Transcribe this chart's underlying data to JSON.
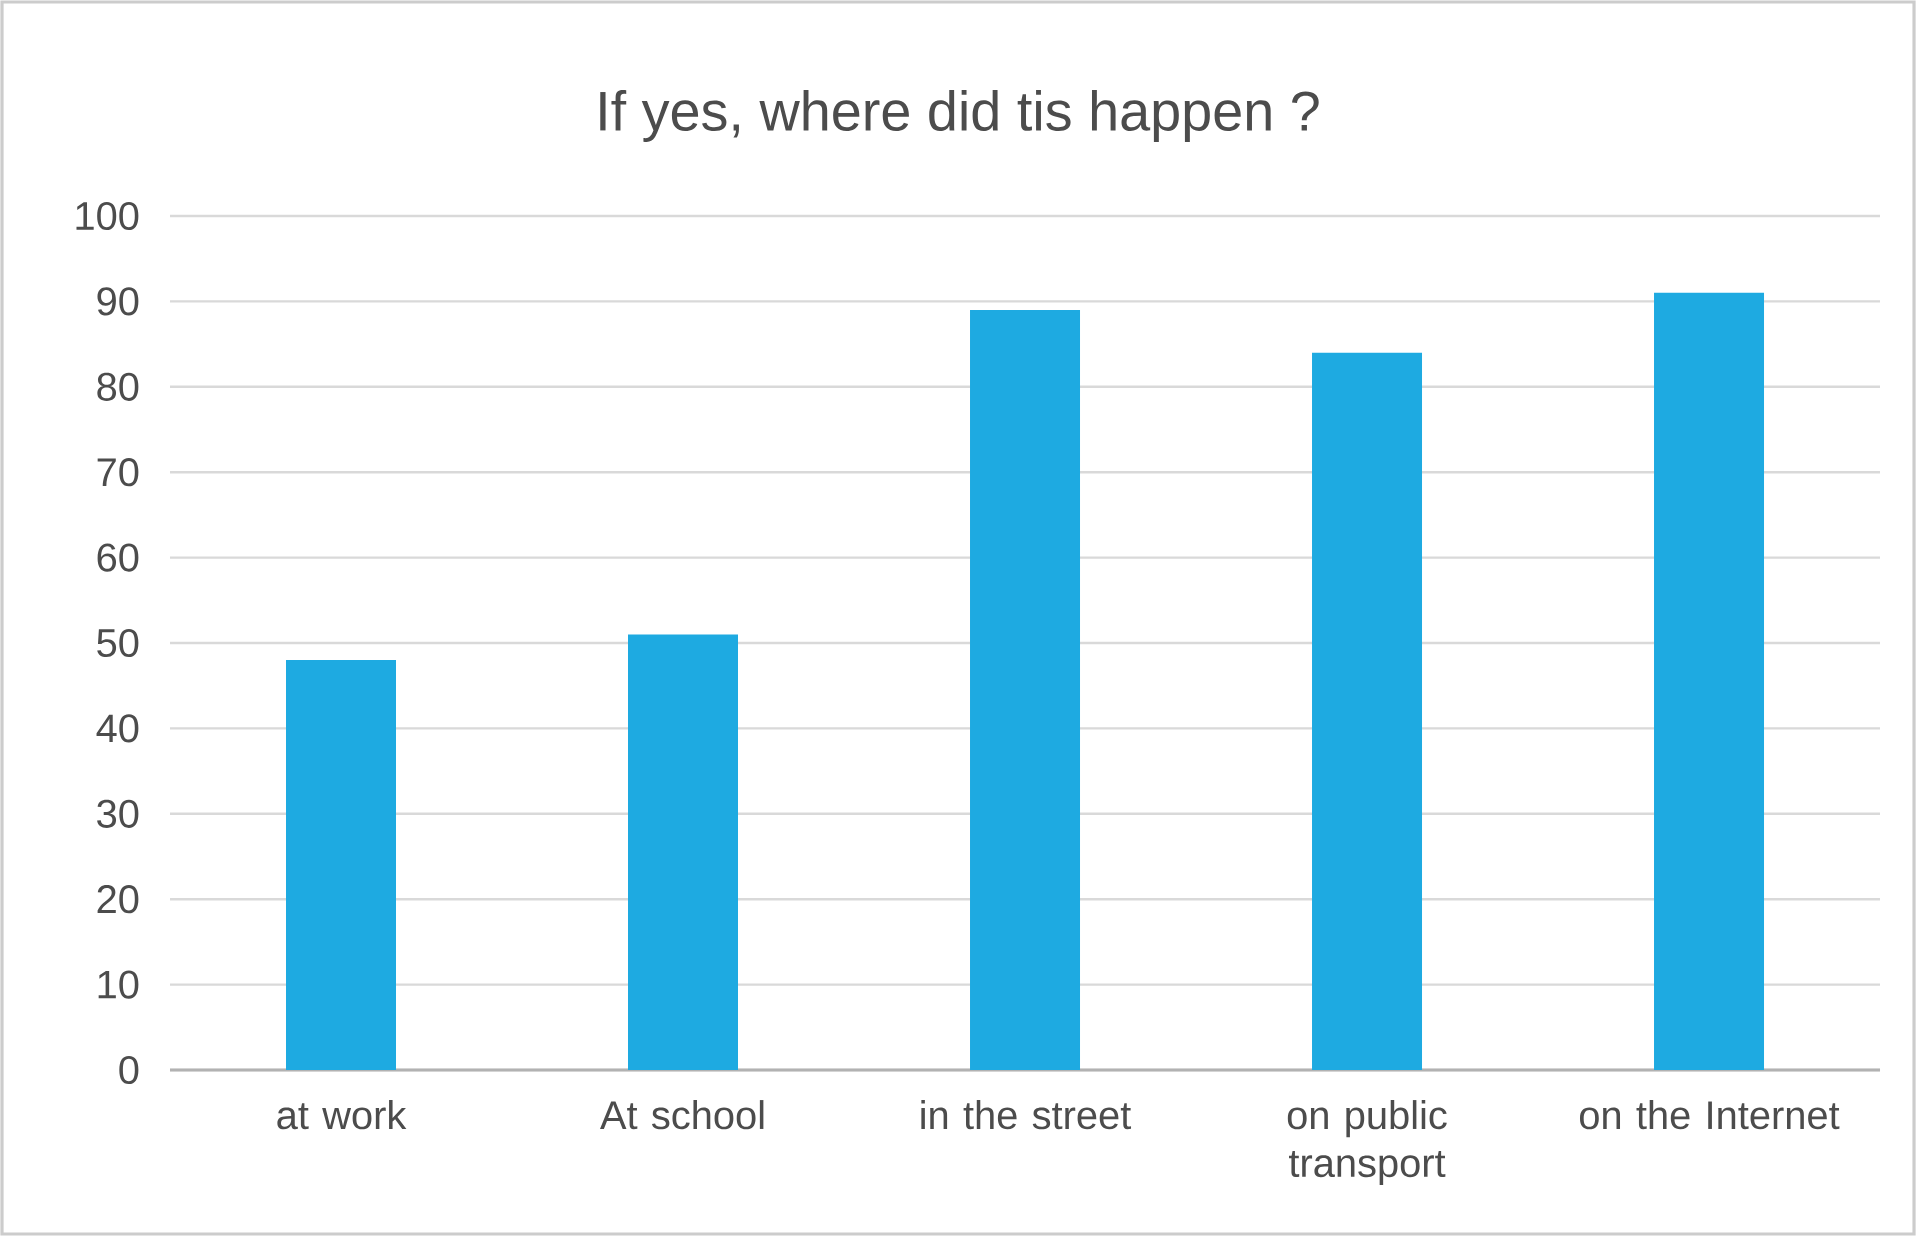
{
  "chart_data": {
    "type": "bar",
    "title": "If yes, where did tis happen ?",
    "categories": [
      "at work",
      "At school",
      "in the street",
      "on public transport",
      "on the Internet"
    ],
    "values": [
      48,
      51,
      89,
      84,
      91
    ],
    "color": "#1eaae1",
    "ylim": [
      0,
      100
    ],
    "yticks": [
      0,
      10,
      20,
      30,
      40,
      50,
      60,
      70,
      80,
      90,
      100
    ],
    "grid": "y"
  }
}
